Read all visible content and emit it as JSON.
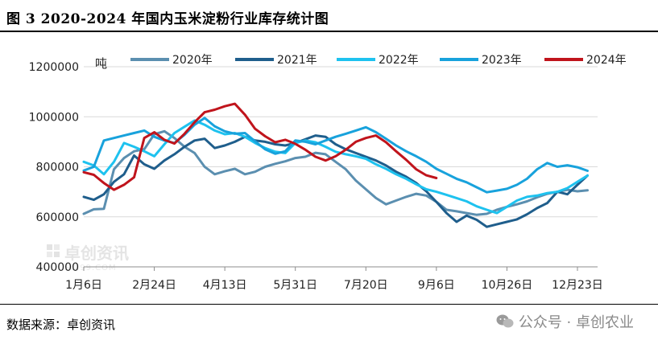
{
  "header": {
    "title": "图 3 2020-2024 年国内玉米淀粉行业库存统计图"
  },
  "footer": {
    "source": "数据来源：卓创资讯",
    "wechat": "公众号 · 卓创农业"
  },
  "watermark": {
    "brand": "卓创资讯",
    "sub": "SCI99.COM"
  },
  "chart_data": {
    "type": "line",
    "title": "图 3 2020-2024 年国内玉米淀粉行业库存统计图",
    "unit": "吨",
    "xlabel": "",
    "ylabel": "吨",
    "ylim": [
      400000,
      1200000
    ],
    "yticks": [
      400000,
      600000,
      800000,
      1000000,
      1200000
    ],
    "ytick_labels": [
      "400000",
      "600000",
      "800000",
      "1000000",
      "1200000"
    ],
    "x_range": [
      0,
      51
    ],
    "xticks": [
      0,
      7,
      14,
      21,
      28,
      35,
      42,
      49
    ],
    "xtick_labels": [
      "1月6日",
      "2月24日",
      "4月13日",
      "5月31日",
      "7月20日",
      "9月6日",
      "10月26日",
      "12月23日"
    ],
    "grid": "horizontal",
    "legend_position": "top",
    "series": [
      {
        "name": "2020年",
        "color": "#5b8fb0",
        "values": [
          612000,
          630000,
          632000,
          790000,
          835000,
          862000,
          870000,
          930000,
          942000,
          915000,
          880000,
          855000,
          800000,
          770000,
          782000,
          792000,
          770000,
          780000,
          800000,
          812000,
          822000,
          835000,
          840000,
          856000,
          850000,
          820000,
          790000,
          745000,
          710000,
          675000,
          650000,
          665000,
          680000,
          692000,
          685000,
          660000,
          628000,
          622000,
          615000,
          608000,
          612000,
          628000,
          640000,
          650000,
          662000,
          678000,
          692000,
          700000,
          708000,
          702000,
          706000
        ]
      },
      {
        "name": "2021年",
        "color": "#1f5e8c",
        "values": [
          680000,
          668000,
          690000,
          740000,
          770000,
          845000,
          810000,
          792000,
          825000,
          850000,
          880000,
          905000,
          912000,
          875000,
          885000,
          900000,
          920000,
          905000,
          900000,
          890000,
          885000,
          895000,
          910000,
          925000,
          920000,
          890000,
          870000,
          855000,
          840000,
          825000,
          805000,
          780000,
          760000,
          735000,
          702000,
          660000,
          615000,
          580000,
          605000,
          588000,
          560000,
          570000,
          580000,
          590000,
          610000,
          635000,
          655000,
          700000,
          690000,
          728000,
          765000
        ]
      },
      {
        "name": "2022年",
        "color": "#1ec2ef",
        "values": [
          820000,
          805000,
          770000,
          820000,
          895000,
          880000,
          862000,
          842000,
          890000,
          935000,
          960000,
          985000,
          968000,
          945000,
          930000,
          935000,
          920000,
          895000,
          875000,
          860000,
          855000,
          895000,
          905000,
          898000,
          880000,
          860000,
          850000,
          842000,
          832000,
          810000,
          792000,
          770000,
          752000,
          730000,
          710000,
          700000,
          688000,
          675000,
          662000,
          642000,
          628000,
          615000,
          640000,
          665000,
          680000,
          685000,
          695000,
          700000,
          715000,
          740000,
          765000
        ]
      },
      {
        "name": "2023年",
        "color": "#18a2dc",
        "values": [
          785000,
          800000,
          905000,
          915000,
          925000,
          935000,
          945000,
          920000,
          905000,
          895000,
          928000,
          968000,
          995000,
          962000,
          942000,
          932000,
          935000,
          902000,
          870000,
          852000,
          862000,
          905000,
          900000,
          890000,
          905000,
          920000,
          932000,
          945000,
          958000,
          938000,
          912000,
          885000,
          862000,
          842000,
          820000,
          792000,
          772000,
          752000,
          738000,
          718000,
          698000,
          705000,
          712000,
          728000,
          752000,
          790000,
          815000,
          800000,
          806000,
          798000,
          784000
        ]
      },
      {
        "name": "2024年",
        "color": "#c0141c",
        "values": [
          778000,
          768000,
          735000,
          708000,
          728000,
          758000,
          915000,
          938000,
          908000,
          893000,
          932000,
          978000,
          1018000,
          1028000,
          1042000,
          1052000,
          1008000,
          952000,
          922000,
          898000,
          908000,
          892000,
          868000,
          840000,
          825000,
          842000,
          868000,
          900000,
          915000,
          925000,
          898000,
          862000,
          828000,
          790000,
          766000,
          755000
        ]
      }
    ]
  }
}
